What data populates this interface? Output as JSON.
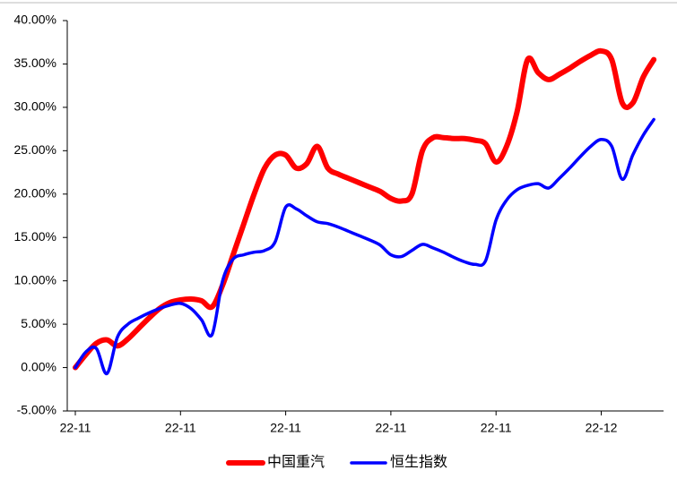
{
  "chart_data": {
    "type": "line",
    "categories": [
      "22-11",
      null,
      null,
      null,
      null,
      null,
      null,
      null,
      null,
      null,
      "22-11",
      null,
      null,
      null,
      null,
      null,
      null,
      null,
      null,
      null,
      "22-11",
      null,
      null,
      null,
      null,
      null,
      null,
      null,
      null,
      null,
      "22-11",
      null,
      null,
      null,
      null,
      null,
      null,
      null,
      null,
      null,
      "22-11",
      null,
      null,
      null,
      null,
      null,
      null,
      null,
      null,
      null,
      "22-12",
      null,
      null,
      null,
      null,
      null
    ],
    "series": [
      {
        "name": "中国重汽",
        "color": "#ff0000",
        "values": [
          0,
          1.5,
          2.8,
          3.2,
          2.5,
          3.3,
          4.5,
          5.7,
          6.8,
          7.5,
          7.8,
          7.9,
          7.7,
          7.0,
          9.5,
          13.0,
          16.5,
          20,
          23,
          24.5,
          24.5,
          23.0,
          23.5,
          25.5,
          23,
          22.3,
          21.8,
          21.3,
          20.8,
          20.3,
          19.5,
          19.2,
          20,
          25,
          26.5,
          26.5,
          26.4,
          26.4,
          26.2,
          25.8,
          23.7,
          25.5,
          29.5,
          35.5,
          34,
          33.2,
          33.8,
          34.5,
          35.3,
          36,
          36.5,
          35.5,
          30.5,
          30.5,
          33.5,
          35.5
        ]
      },
      {
        "name": "恒生指数",
        "color": "#0000ff",
        "values": [
          0,
          1.8,
          2.2,
          -0.7,
          3.5,
          5.0,
          5.7,
          6.3,
          6.8,
          7.2,
          7.4,
          6.8,
          5.5,
          3.8,
          10,
          12.5,
          13.0,
          13.3,
          13.5,
          14.5,
          18.5,
          18.3,
          17.5,
          16.8,
          16.6,
          16.2,
          15.7,
          15.2,
          14.7,
          14.1,
          13.0,
          12.8,
          13.5,
          14.2,
          13.8,
          13.3,
          12.7,
          12.2,
          11.9,
          12.3,
          17,
          19.3,
          20.5,
          21,
          21.2,
          20.7,
          21.8,
          23,
          24.3,
          25.5,
          26.3,
          25.5,
          21.7,
          24.5,
          26.8,
          28.6
        ]
      }
    ],
    "ylim": [
      -5,
      40
    ],
    "yticks": [
      {
        "value": -5,
        "label": "-5.00%"
      },
      {
        "value": 0,
        "label": "0.00%"
      },
      {
        "value": 5,
        "label": "5.00%"
      },
      {
        "value": 10,
        "label": "10.00%"
      },
      {
        "value": 15,
        "label": "15.00%"
      },
      {
        "value": 20,
        "label": "20.00%"
      },
      {
        "value": 25,
        "label": "25.00%"
      },
      {
        "value": 30,
        "label": "30.00%"
      },
      {
        "value": 35,
        "label": "35.00%"
      },
      {
        "value": 40,
        "label": "40.00%"
      }
    ],
    "grid": false,
    "legend": "bottom"
  }
}
